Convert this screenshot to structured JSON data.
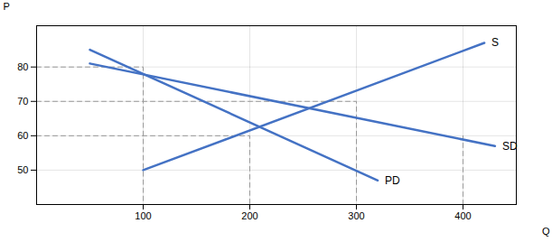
{
  "chart_data": {
    "type": "line",
    "xlabel": "Q",
    "ylabel": "P",
    "xlim": [
      0,
      450
    ],
    "ylim": [
      40,
      92
    ],
    "xticks": [
      100,
      200,
      300,
      400
    ],
    "yticks": [
      50,
      60,
      70,
      80
    ],
    "grid": true,
    "series": [
      {
        "name": "S",
        "color": "#4472C4",
        "line_style": "solid",
        "x": [
          100,
          420
        ],
        "values": [
          50,
          87
        ]
      },
      {
        "name": "SD",
        "color": "#4472C4",
        "line_style": "solid",
        "x": [
          50,
          430
        ],
        "values": [
          81,
          57
        ]
      },
      {
        "name": "PD",
        "color": "#4472C4",
        "line_style": "solid",
        "x": [
          50,
          320
        ],
        "values": [
          85,
          47
        ]
      }
    ],
    "reference_lines": [
      {
        "color": "#999999",
        "line_style": "dashed",
        "x": [
          0,
          100,
          100
        ],
        "values": [
          80,
          80,
          40
        ]
      },
      {
        "color": "#999999",
        "line_style": "dashed",
        "x": [
          0,
          200,
          200
        ],
        "values": [
          60,
          60,
          40
        ]
      },
      {
        "color": "#999999",
        "line_style": "dashed",
        "x": [
          0,
          300,
          300
        ],
        "values": [
          70,
          70,
          40
        ]
      },
      {
        "color": "#999999",
        "line_style": "dashed",
        "x": [
          400,
          400
        ],
        "values": [
          40,
          60
        ]
      }
    ]
  }
}
